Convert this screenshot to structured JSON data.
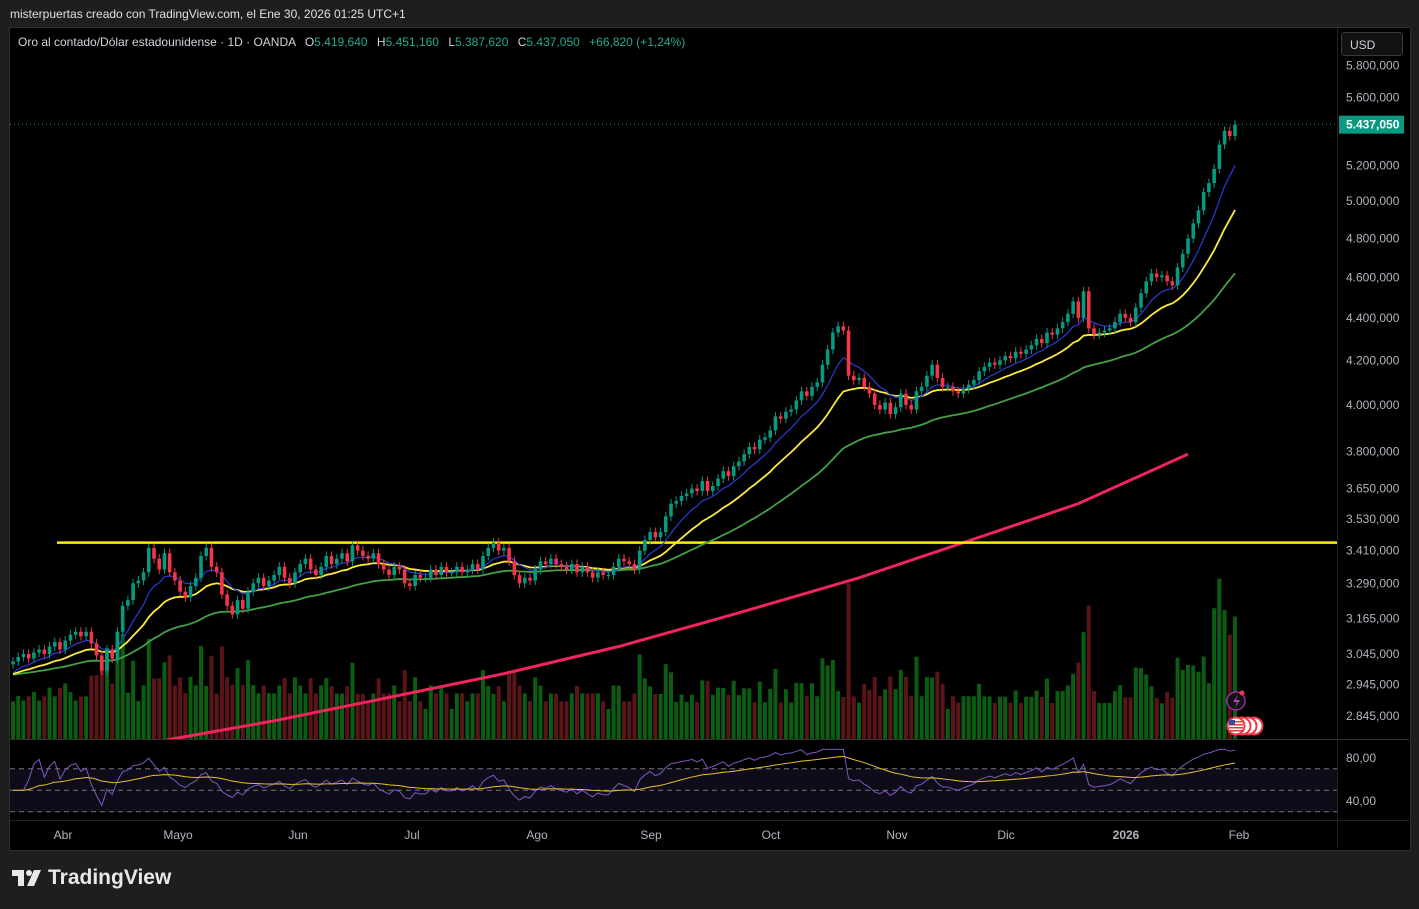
{
  "credit": "misterpuertas creado con TradingView.com, el Ene 30, 2026 01:25 UTC+1",
  "legend": {
    "symbol": "Oro al contado/Dólar estadounidense · 1D · OANDA",
    "o_label": "O",
    "o": "5.419,640",
    "h_label": "H",
    "h": "5.451,160",
    "l_label": "L",
    "l": "5.387,620",
    "c_label": "C",
    "c": "5.437,050",
    "change": "+66,820 (+1,24%)"
  },
  "currency_button": "USD",
  "last_price_label": "5.437,050",
  "brand": "TradingView",
  "colors": {
    "up": "#089981",
    "down": "#f23645",
    "ema_fast": "#2b3bd9",
    "ema_mid": "#ffeb3b",
    "ema_slow": "#43a047",
    "ma200": "#f0245f",
    "hline": "#ffee00",
    "rsi": "#7e57c2",
    "rsi_ma": "#e6c229",
    "last_price": "#089981"
  },
  "icons": [
    "lightning-icon",
    "us-flag-event-icon"
  ],
  "chart_data": {
    "type": "candlestick",
    "scale": "log",
    "grid": false,
    "price_axis_ticks": [
      {
        "value": 5800000,
        "label": "5.800,000"
      },
      {
        "value": 5600000,
        "label": "5.600,000"
      },
      {
        "value": 5200000,
        "label": "5.200,000"
      },
      {
        "value": 5000000,
        "label": "5.000,000"
      },
      {
        "value": 4800000,
        "label": "4.800,000"
      },
      {
        "value": 4600000,
        "label": "4.600,000"
      },
      {
        "value": 4400000,
        "label": "4.400,000"
      },
      {
        "value": 4200000,
        "label": "4.200,000"
      },
      {
        "value": 4000000,
        "label": "4.000,000"
      },
      {
        "value": 3800000,
        "label": "3.800,000"
      },
      {
        "value": 3650000,
        "label": "3.650,000"
      },
      {
        "value": 3530000,
        "label": "3.530,000"
      },
      {
        "value": 3410000,
        "label": "3.410,000"
      },
      {
        "value": 3290000,
        "label": "3.290,000"
      },
      {
        "value": 3165000,
        "label": "3.165,000"
      },
      {
        "value": 3045000,
        "label": "3.045,000"
      },
      {
        "value": 2945000,
        "label": "2.945,000"
      },
      {
        "value": 2845000,
        "label": "2.845,000"
      }
    ],
    "time_axis_ticks": [
      "Abr",
      "Mayo",
      "Jun",
      "Jul",
      "Ago",
      "Sep",
      "Oct",
      "Nov",
      "Dic",
      "2026",
      "Feb"
    ],
    "last_price": 5437050,
    "horizontal_line": 3440000,
    "closes": [
      3020000,
      3035000,
      3045000,
      3030000,
      3050000,
      3060000,
      3045000,
      3070000,
      3085000,
      3060000,
      3090000,
      3110000,
      3120000,
      3105000,
      3120000,
      3080000,
      3040000,
      2990000,
      3060000,
      3030000,
      3120000,
      3210000,
      3230000,
      3290000,
      3300000,
      3330000,
      3420000,
      3380000,
      3340000,
      3400000,
      3330000,
      3300000,
      3260000,
      3240000,
      3280000,
      3310000,
      3390000,
      3420000,
      3350000,
      3330000,
      3250000,
      3210000,
      3180000,
      3230000,
      3200000,
      3260000,
      3290000,
      3310000,
      3280000,
      3300000,
      3320000,
      3350000,
      3310000,
      3290000,
      3330000,
      3360000,
      3380000,
      3340000,
      3320000,
      3350000,
      3390000,
      3360000,
      3380000,
      3400000,
      3370000,
      3430000,
      3410000,
      3390000,
      3380000,
      3400000,
      3360000,
      3340000,
      3320000,
      3350000,
      3340000,
      3290000,
      3280000,
      3320000,
      3310000,
      3310000,
      3340000,
      3320000,
      3350000,
      3330000,
      3330000,
      3350000,
      3330000,
      3340000,
      3360000,
      3340000,
      3390000,
      3420000,
      3440000,
      3410000,
      3420000,
      3370000,
      3320000,
      3290000,
      3310000,
      3300000,
      3340000,
      3370000,
      3360000,
      3380000,
      3360000,
      3350000,
      3340000,
      3360000,
      3330000,
      3350000,
      3330000,
      3310000,
      3330000,
      3320000,
      3320000,
      3350000,
      3380000,
      3370000,
      3360000,
      3340000,
      3410000,
      3450000,
      3480000,
      3460000,
      3480000,
      3540000,
      3590000,
      3600000,
      3620000,
      3630000,
      3650000,
      3640000,
      3680000,
      3640000,
      3660000,
      3690000,
      3720000,
      3700000,
      3740000,
      3760000,
      3790000,
      3820000,
      3810000,
      3850000,
      3860000,
      3890000,
      3950000,
      3940000,
      3970000,
      3980000,
      4020000,
      4060000,
      4040000,
      4080000,
      4100000,
      4180000,
      4250000,
      4330000,
      4360000,
      4340000,
      4130000,
      4110000,
      4120000,
      4080000,
      4050000,
      4000000,
      3980000,
      4010000,
      3960000,
      3990000,
      4050000,
      4000000,
      3980000,
      4060000,
      4080000,
      4130000,
      4180000,
      4120000,
      4080000,
      4080000,
      4060000,
      4050000,
      4070000,
      4090000,
      4110000,
      4150000,
      4170000,
      4190000,
      4180000,
      4200000,
      4220000,
      4210000,
      4240000,
      4230000,
      4250000,
      4270000,
      4300000,
      4280000,
      4330000,
      4320000,
      4350000,
      4380000,
      4420000,
      4480000,
      4400000,
      4530000,
      4350000,
      4320000,
      4330000,
      4340000,
      4350000,
      4380000,
      4420000,
      4400000,
      4380000,
      4450000,
      4520000,
      4580000,
      4620000,
      4600000,
      4610000,
      4580000,
      4560000,
      4650000,
      4720000,
      4800000,
      4880000,
      4950000,
      5050000,
      5100000,
      5180000,
      5320000,
      5400000,
      5370000,
      5437050
    ],
    "ma200_by_month": [
      {
        "month": "Abr",
        "value": 2690000
      },
      {
        "month": "Mayo",
        "value": 2770000
      },
      {
        "month": "Jun",
        "value": 2830000
      },
      {
        "month": "Jul",
        "value": 2900000
      },
      {
        "month": "Ago",
        "value": 2980000
      },
      {
        "month": "Sep",
        "value": 3070000
      },
      {
        "month": "Oct",
        "value": 3180000
      },
      {
        "month": "Nov",
        "value": 3310000
      },
      {
        "month": "Dic",
        "value": 3440000
      },
      {
        "month": "2026",
        "value": 3590000
      },
      {
        "month": "Feb",
        "value": 3790000
      }
    ],
    "rsi_axis_ticks": [
      {
        "value": 80,
        "label": "80,00"
      },
      {
        "value": 40,
        "label": "40,00"
      }
    ],
    "rsi_bands": [
      70,
      50,
      30
    ]
  }
}
